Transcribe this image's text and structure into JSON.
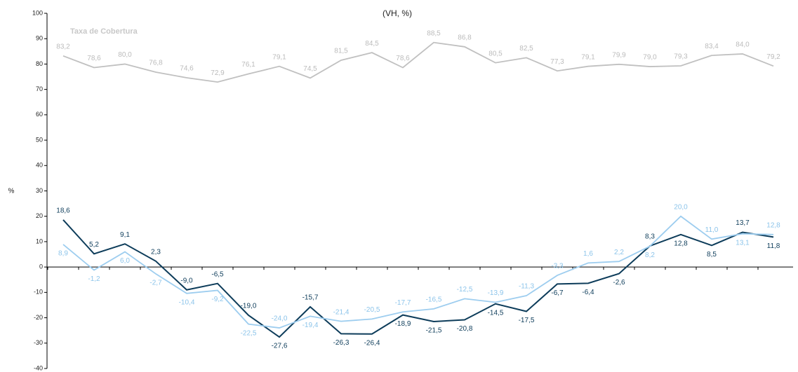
{
  "chart_data": {
    "type": "line",
    "title": "(VH, %)",
    "y_label": "%",
    "annotation": "Taxa de Cobertura",
    "categories": [
      null,
      null,
      null,
      null,
      null,
      null,
      null,
      null,
      null,
      null,
      null,
      null,
      null,
      null,
      null,
      null,
      null,
      null,
      null,
      null,
      null,
      null,
      null,
      null
    ],
    "ylim": [
      -40,
      100
    ],
    "yticks": [
      -40,
      -30,
      -20,
      -10,
      0,
      10,
      20,
      30,
      40,
      50,
      60,
      70,
      80,
      90,
      100
    ],
    "series": [
      {
        "name": "Taxa de Cobertura",
        "color": "#c0c0c0",
        "values": [
          83.2,
          78.6,
          80.0,
          76.8,
          74.6,
          72.9,
          76.1,
          79.1,
          74.5,
          81.5,
          84.5,
          78.6,
          88.5,
          86.8,
          80.5,
          82.5,
          77.3,
          79.1,
          79.9,
          79.0,
          79.3,
          83.4,
          84.0,
          79.2
        ],
        "value_labels": [
          "83,2",
          "78,6",
          "80,0",
          "76,8",
          "74,6",
          "72,9",
          "76,1",
          "79,1",
          "74,5",
          "81,5",
          "84,5",
          "78,6",
          "88,5",
          "86,8",
          "80,5",
          "82,5",
          "77,3",
          "79,1",
          "79,9",
          "79,0",
          "79,3",
          "83,4",
          "84,0",
          "79,2"
        ]
      },
      {
        "color": "#0d3c5a",
        "values": [
          18.6,
          5.2,
          9.1,
          2.3,
          -9.0,
          -6.5,
          -19.0,
          -27.6,
          -15.7,
          -26.3,
          -26.4,
          -18.9,
          -21.5,
          -20.8,
          -14.5,
          -17.5,
          -6.7,
          -6.4,
          -2.6,
          8.3,
          12.8,
          8.5,
          13.7,
          11.8
        ],
        "value_labels": [
          "18,6",
          "5,2",
          "9,1",
          "2,3",
          "-9,0",
          "-6,5",
          "-19,0",
          "-27,6",
          "-15,7",
          "-26,3",
          "-26,4",
          "-18,9",
          "-21,5",
          "-20,8",
          "-14,5",
          "-17,5",
          "-6,7",
          "-6,4",
          "-2,6",
          "8,3",
          "12,8",
          "8,5",
          "13,7",
          "11,8"
        ]
      },
      {
        "color": "#9dcdef",
        "values": [
          8.9,
          -1.2,
          6.0,
          -2.7,
          -10.4,
          -9.2,
          -22.5,
          -24.0,
          -19.4,
          -21.4,
          -20.5,
          -17.7,
          -16.5,
          -12.5,
          -13.9,
          -11.3,
          -3.3,
          1.6,
          2.2,
          8.2,
          20.0,
          11.0,
          13.1,
          12.8
        ],
        "value_labels": [
          "8,9",
          "-1,2",
          "6,0",
          "-2,7",
          "-10,4",
          "-9,2",
          "-22,5",
          "-24,0",
          "-19,4",
          "-21,4",
          "-20,5",
          "-17,7",
          "-16,5",
          "-12,5",
          "-13,9",
          "-11,3",
          "-3,3",
          "1,6",
          "2,2",
          "8,2",
          "20,0",
          "11,0",
          "13,1",
          "12,8"
        ]
      }
    ]
  }
}
